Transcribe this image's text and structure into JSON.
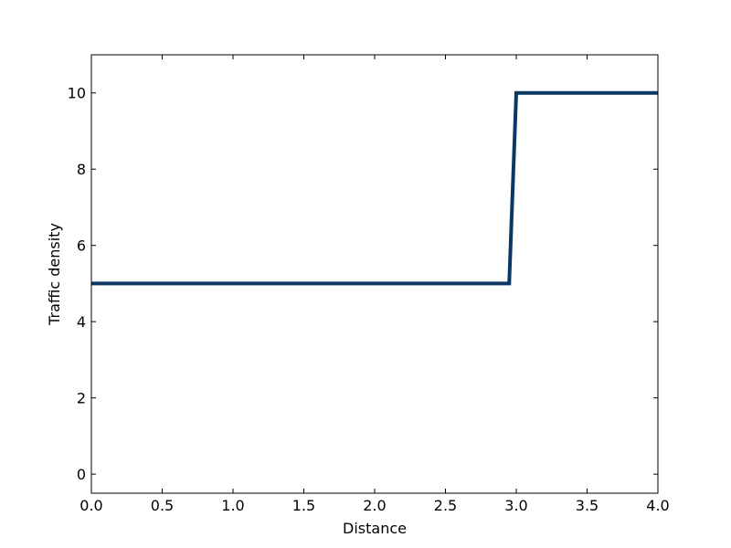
{
  "chart_data": {
    "type": "line",
    "title": "",
    "xlabel": "Distance",
    "ylabel": "Traffic density",
    "xlim": [
      0.0,
      4.0
    ],
    "ylim": [
      -0.5,
      11.0
    ],
    "x_ticks": [
      0.0,
      0.5,
      1.0,
      1.5,
      2.0,
      2.5,
      3.0,
      3.5,
      4.0
    ],
    "x_tick_labels": [
      "0.0",
      "0.5",
      "1.0",
      "1.5",
      "2.0",
      "2.5",
      "3.0",
      "3.5",
      "4.0"
    ],
    "y_ticks": [
      0,
      2,
      4,
      6,
      8,
      10
    ],
    "y_tick_labels": [
      "0",
      "2",
      "4",
      "6",
      "8",
      "10"
    ],
    "grid": false,
    "legend": "none",
    "series": [
      {
        "color": "#0b3763",
        "x": [
          0.0,
          2.95,
          3.0,
          4.0
        ],
        "y": [
          5,
          5,
          10,
          10
        ]
      }
    ]
  }
}
